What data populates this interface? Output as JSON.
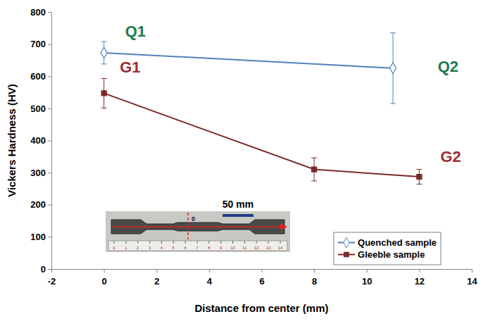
{
  "chart_data": {
    "type": "line",
    "x_label": "Distance from center (mm)",
    "y_label": "Vickers Hardness (HV)",
    "xlim": [
      -2,
      14
    ],
    "xticks": [
      -2,
      0,
      2,
      4,
      6,
      8,
      10,
      12,
      14
    ],
    "ylim": [
      0,
      800
    ],
    "yticks": [
      0,
      100,
      200,
      300,
      400,
      500,
      600,
      700,
      800
    ],
    "grid": false,
    "legend": "lower right",
    "series": [
      {
        "name": "Quenched sample",
        "color": "#4f81bd",
        "marker": "diamond",
        "line_style": "solid",
        "x": [
          0,
          11
        ],
        "values": [
          673,
          625
        ],
        "errors": [
          35,
          110
        ]
      },
      {
        "name": "Gleeble sample",
        "color": "#7b2a2a",
        "marker": "square",
        "line_style": "solid",
        "x": [
          0,
          8,
          12
        ],
        "values": [
          547,
          310,
          287
        ],
        "errors": [
          46,
          36,
          23
        ]
      }
    ],
    "annotations": [
      {
        "text": "Q1",
        "x": 1.2,
        "y": 740,
        "color": "#1e7b4c"
      },
      {
        "text": "Q2",
        "x": 13.1,
        "y": 630,
        "color": "#1e7b4c"
      },
      {
        "text": "G1",
        "x": 1.0,
        "y": 628,
        "color": "#9b2d30"
      },
      {
        "text": "G2",
        "x": 13.2,
        "y": 350,
        "color": "#9b2d30"
      }
    ],
    "inset_texts": [
      "50 mm",
      "0"
    ],
    "inset_ruler": [
      0,
      1,
      2,
      3,
      4,
      5,
      6,
      7,
      8,
      9,
      10,
      11,
      12,
      13,
      14
    ]
  }
}
